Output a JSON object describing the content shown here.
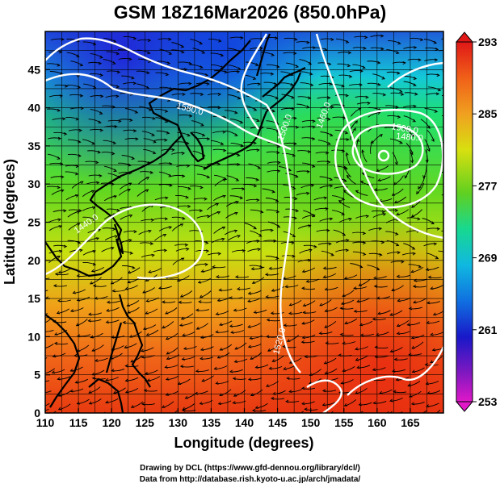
{
  "title": "GSM 18Z16Mar2026 (850.0hPa)",
  "x_axis": {
    "label": "Longitude (degrees)",
    "range": [
      110,
      170
    ],
    "ticks": [
      110,
      115,
      120,
      125,
      130,
      135,
      140,
      145,
      150,
      155,
      160,
      165
    ]
  },
  "y_axis": {
    "label": "Latitude  (degrees)",
    "range": [
      0,
      50
    ],
    "ticks": [
      0,
      5,
      10,
      15,
      20,
      25,
      30,
      35,
      40,
      45
    ]
  },
  "colorbar": {
    "min": 253,
    "max": 293,
    "labels": [
      293,
      285,
      277,
      269,
      261,
      253
    ]
  },
  "contour_labels": [
    "1580.0",
    "1500.0",
    "1460.0",
    "1500.0",
    "1480.0",
    "1440.0",
    "1520.0"
  ],
  "credits": [
    "Drawing by DCL (https://www.gfd-dennou.org/library/dcl/)",
    "Data from http://database.rish.kyoto-u.ac.jp/arch/jmadata/"
  ]
}
